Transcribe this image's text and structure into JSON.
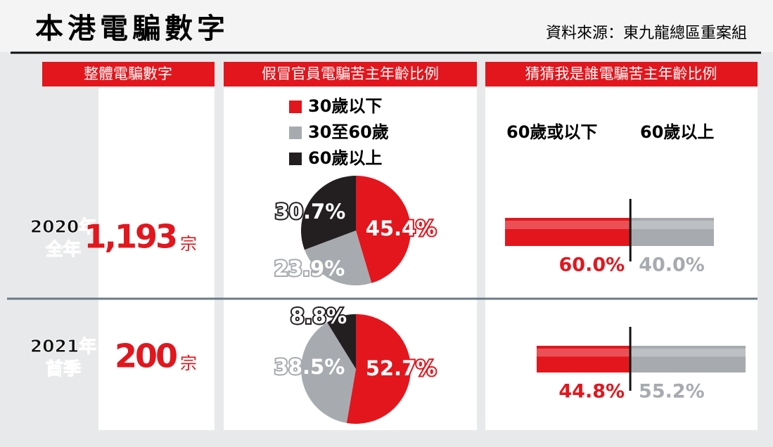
{
  "header": {
    "title": "本港電騙數字",
    "source": "資料來源：東九龍總區重案組"
  },
  "columns": [
    "整體電騙數字",
    "假冒官員電騙苦主年齡比例",
    "猜猜我是誰電騙苦主年齡比例"
  ],
  "pie_legend": [
    {
      "name": "30歲以下",
      "color": "#e3161d"
    },
    {
      "name": "30至60歲",
      "color": "#a7abaf"
    },
    {
      "name": "60歲以上",
      "color": "#231f20"
    }
  ],
  "bar_series": [
    {
      "name": "60歲或以下",
      "color": "#e3161d"
    },
    {
      "name": "60歲以上",
      "color": "#a7abaf"
    }
  ],
  "rows": [
    {
      "label": [
        "2020年",
        "全年"
      ],
      "count": "1,193",
      "unit": "宗",
      "pie": {
        "type": "pie",
        "values": [
          45.4,
          23.9,
          30.7
        ],
        "value_labels": [
          "45.4%",
          "23.9%",
          "30.7%"
        ]
      },
      "bar": {
        "type": "bar",
        "values": [
          60.0,
          40.0
        ],
        "value_labels": [
          "60.0%",
          "40.0%"
        ]
      }
    },
    {
      "label": [
        "2021年",
        "首季"
      ],
      "count": "200",
      "unit": "宗",
      "pie": {
        "type": "pie",
        "values": [
          52.7,
          38.5,
          8.8
        ],
        "value_labels": [
          "52.7%",
          "38.5%",
          "8.8%"
        ]
      },
      "bar": {
        "type": "bar",
        "values": [
          44.8,
          55.2
        ],
        "value_labels": [
          "44.8%",
          "55.2%"
        ]
      }
    }
  ]
}
